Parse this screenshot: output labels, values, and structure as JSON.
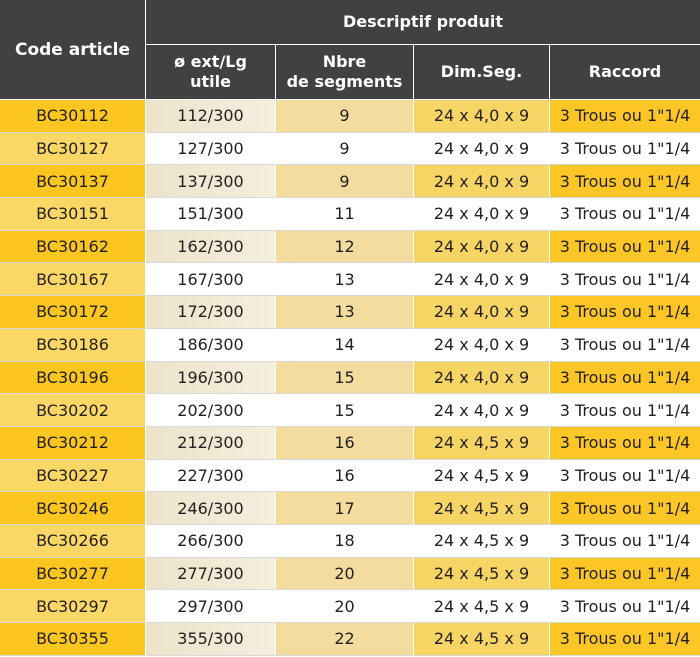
{
  "header": {
    "code_article": "Code article",
    "descriptif": "Descriptif produit",
    "col_diam_line1": "ø ext/Lg",
    "col_diam_line2": "utile",
    "col_segments_line1": "Nbre",
    "col_segments_line2": "de segments",
    "col_dim": "Dim.Seg.",
    "col_raccord": "Raccord"
  },
  "rows": [
    {
      "code": "BC30112",
      "diam": "112/300",
      "segments": "9",
      "dim": "24 x 4,0 x 9",
      "raccord": "3 Trous  ou 1\"1/4"
    },
    {
      "code": "BC30127",
      "diam": "127/300",
      "segments": "9",
      "dim": "24 x 4,0 x 9",
      "raccord": "3 Trous  ou 1\"1/4"
    },
    {
      "code": "BC30137",
      "diam": "137/300",
      "segments": "9",
      "dim": "24 x 4,0 x 9",
      "raccord": "3 Trous  ou 1\"1/4"
    },
    {
      "code": "BC30151",
      "diam": "151/300",
      "segments": "11",
      "dim": "24 x 4,0 x 9",
      "raccord": "3 Trous  ou 1\"1/4"
    },
    {
      "code": "BC30162",
      "diam": "162/300",
      "segments": "12",
      "dim": "24 x 4,0 x 9",
      "raccord": "3 Trous  ou 1\"1/4"
    },
    {
      "code": "BC30167",
      "diam": "167/300",
      "segments": "13",
      "dim": "24 x 4,0 x 9",
      "raccord": "3 Trous  ou 1\"1/4"
    },
    {
      "code": "BC30172",
      "diam": "172/300",
      "segments": "13",
      "dim": "24 x 4,0 x 9",
      "raccord": "3 Trous  ou 1\"1/4"
    },
    {
      "code": "BC30186",
      "diam": "186/300",
      "segments": "14",
      "dim": "24 x 4,0 x 9",
      "raccord": "3 Trous  ou 1\"1/4"
    },
    {
      "code": "BC30196",
      "diam": "196/300",
      "segments": "15",
      "dim": "24 x 4,0 x 9",
      "raccord": "3 Trous  ou 1\"1/4"
    },
    {
      "code": "BC30202",
      "diam": "202/300",
      "segments": "15",
      "dim": "24 x 4,0 x 9",
      "raccord": "3 Trous  ou 1\"1/4"
    },
    {
      "code": "BC30212",
      "diam": "212/300",
      "segments": "16",
      "dim": "24 x 4,5 x 9",
      "raccord": "3 Trous  ou 1\"1/4"
    },
    {
      "code": "BC30227",
      "diam": "227/300",
      "segments": "16",
      "dim": "24 x 4,5 x 9",
      "raccord": "3 Trous  ou 1\"1/4"
    },
    {
      "code": "BC30246",
      "diam": "246/300",
      "segments": "17",
      "dim": "24 x 4,5 x 9",
      "raccord": "3 Trous  ou 1\"1/4"
    },
    {
      "code": "BC30266",
      "diam": "266/300",
      "segments": "18",
      "dim": "24 x 4,5 x 9",
      "raccord": "3 Trous  ou 1\"1/4"
    },
    {
      "code": "BC30277",
      "diam": "277/300",
      "segments": "20",
      "dim": "24 x 4,5 x 9",
      "raccord": "3 Trous  ou 1\"1/4"
    },
    {
      "code": "BC30297",
      "diam": "297/300",
      "segments": "20",
      "dim": "24 x 4,5 x 9",
      "raccord": "3 Trous  ou 1\"1/4"
    },
    {
      "code": "BC30355",
      "diam": "355/300",
      "segments": "22",
      "dim": "24 x 4,5 x 9",
      "raccord": "3 Trous  ou 1\"1/4"
    }
  ]
}
